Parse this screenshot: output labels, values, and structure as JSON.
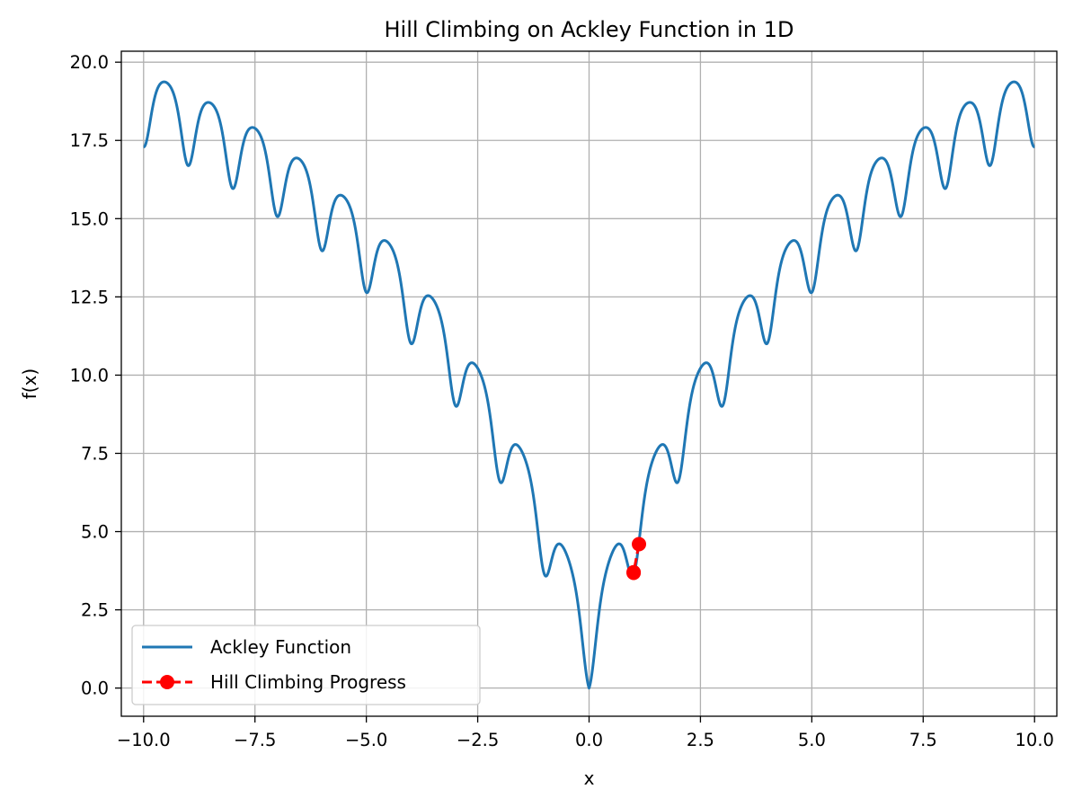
{
  "chart_data": {
    "type": "line",
    "title": "Hill Climbing on Ackley Function in 1D",
    "xlabel": "x",
    "ylabel": "f(x)",
    "xlim": [
      -10.5,
      10.5
    ],
    "ylim": [
      -0.9,
      20.35
    ],
    "grid": true,
    "legend_position": "lower-left",
    "x_ticks": [
      -10,
      -7.5,
      -5,
      -2.5,
      0,
      2.5,
      5,
      7.5,
      10
    ],
    "x_tick_labels": [
      "−10.0",
      "−7.5",
      "−5.0",
      "−2.5",
      "0.0",
      "2.5",
      "5.0",
      "7.5",
      "10.0"
    ],
    "y_ticks": [
      0,
      2.5,
      5,
      7.5,
      10,
      12.5,
      15,
      17.5,
      20
    ],
    "y_tick_labels": [
      "0.0",
      "2.5",
      "5.0",
      "7.5",
      "10.0",
      "12.5",
      "15.0",
      "17.5",
      "20.0"
    ],
    "series": [
      {
        "name": "Ackley Function",
        "style": "solid",
        "color": "#1f77b4",
        "function": "ackley-1d",
        "x_range": [
          -10,
          10
        ],
        "sample_count": 2001
      },
      {
        "name": "Hill Climbing Progress",
        "style": "dashed-with-markers",
        "color": "#ff0000",
        "x": [
          1.12,
          1.0,
          1.0
        ],
        "y": [
          4.6,
          3.7,
          3.68
        ]
      }
    ]
  }
}
